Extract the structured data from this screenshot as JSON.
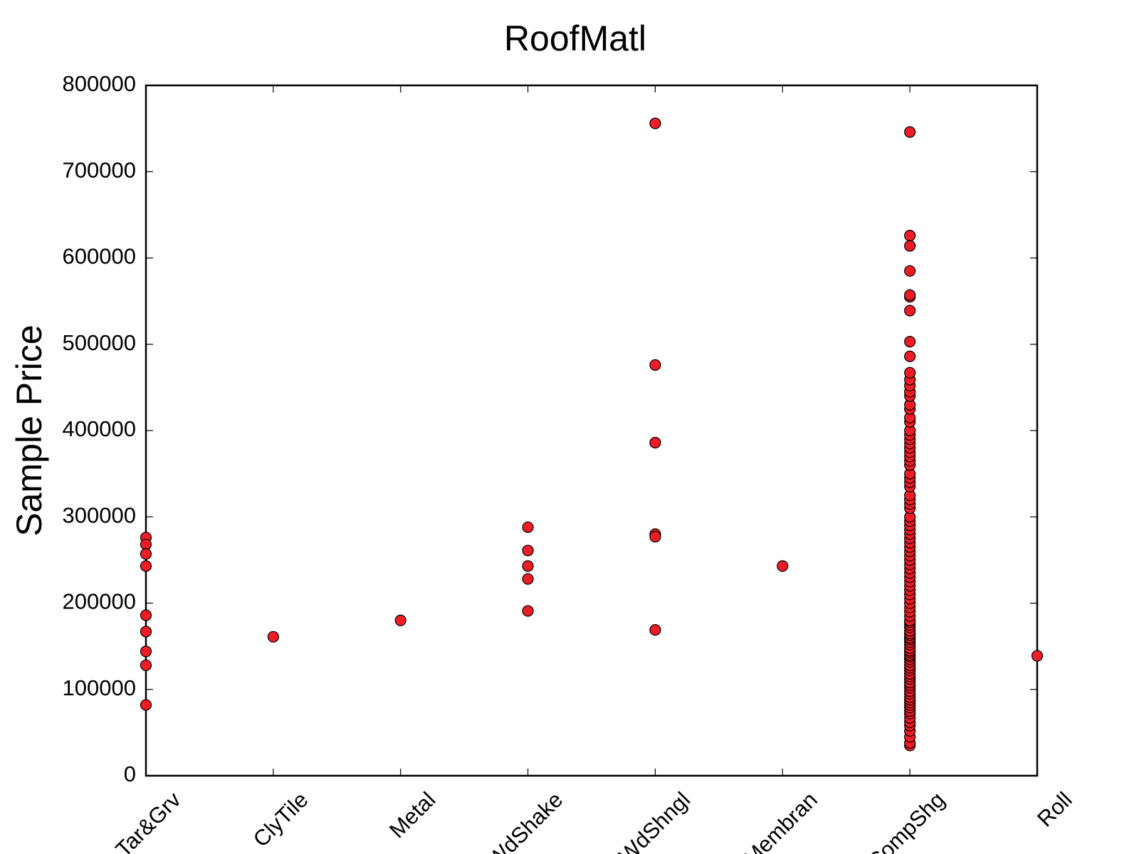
{
  "chart_data": {
    "type": "scatter",
    "title": "RoofMatl",
    "y_label": "Sample Price",
    "categories": [
      "Tar&Grv",
      "ClyTile",
      "Metal",
      "WdShake",
      "WdShngl",
      "Membran",
      "CompShg",
      "Roll"
    ],
    "values": [
      [
        276000,
        268000,
        257000,
        243000,
        186000,
        167000,
        144000,
        128000,
        82000
      ],
      [
        161000
      ],
      [
        180000
      ],
      [
        288000,
        261000,
        243000,
        228000,
        191000
      ],
      [
        756000,
        476000,
        386000,
        280000,
        277000,
        169000
      ],
      [
        243000
      ],
      [
        35000,
        38000,
        45000,
        52000,
        58000,
        62000,
        67000,
        72000,
        75000,
        79000,
        82000,
        85000,
        88000,
        91000,
        95000,
        98000,
        102000,
        105000,
        108000,
        112000,
        115000,
        118000,
        122000,
        125000,
        128000,
        132000,
        135000,
        138000,
        140000,
        143000,
        145000,
        148000,
        152000,
        155000,
        158000,
        160000,
        163000,
        165000,
        168000,
        172000,
        175000,
        178000,
        180000,
        185000,
        190000,
        195000,
        200000,
        205000,
        210000,
        215000,
        220000,
        225000,
        230000,
        235000,
        240000,
        245000,
        250000,
        255000,
        260000,
        265000,
        270000,
        275000,
        280000,
        285000,
        290000,
        295000,
        300000,
        310000,
        315000,
        320000,
        325000,
        335000,
        340000,
        345000,
        350000,
        360000,
        365000,
        370000,
        375000,
        380000,
        385000,
        390000,
        395000,
        400000,
        410000,
        415000,
        425000,
        430000,
        440000,
        445000,
        452000,
        459000,
        467000,
        486000,
        503000,
        539000,
        555000,
        557000,
        585000,
        614000,
        626000,
        746000
      ],
      [
        139000
      ]
    ],
    "color": "#ee1c25",
    "ylim": [
      0,
      800000
    ],
    "yticks": [
      0,
      100000,
      200000,
      300000,
      400000,
      500000,
      600000,
      700000,
      800000
    ],
    "grid": false
  }
}
